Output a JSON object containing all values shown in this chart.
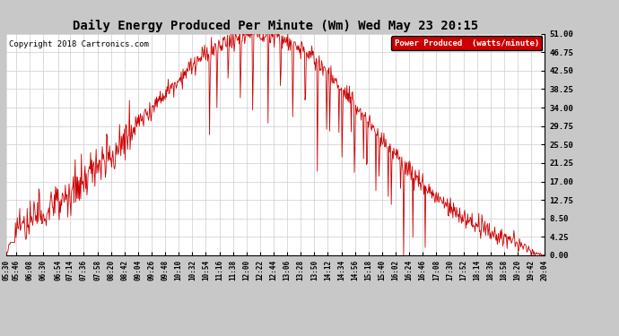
{
  "title": "Daily Energy Produced Per Minute (Wm) Wed May 23 20:15",
  "copyright": "Copyright 2018 Cartronics.com",
  "legend_label": "Power Produced  (watts/minute)",
  "legend_bg": "#CC0000",
  "legend_text_color": "#FFFFFF",
  "line_color": "#CC0000",
  "bg_color": "#FFFFFF",
  "grid_color": "#CCCCCC",
  "outer_bg": "#C8C8C8",
  "ymin": 0.0,
  "ymax": 51.0,
  "yticks": [
    0.0,
    4.25,
    8.5,
    12.75,
    17.0,
    21.25,
    25.5,
    29.75,
    34.0,
    38.25,
    42.5,
    46.75,
    51.0
  ],
  "ytick_labels": [
    "0.00",
    "4.25",
    "8.50",
    "12.75",
    "17.00",
    "21.25",
    "25.50",
    "29.75",
    "34.00",
    "38.25",
    "42.50",
    "46.75",
    "51.00"
  ],
  "xtick_times_str": [
    "05:30",
    "05:46",
    "06:08",
    "06:30",
    "06:54",
    "07:14",
    "07:36",
    "07:58",
    "08:20",
    "08:42",
    "09:04",
    "09:26",
    "09:48",
    "10:10",
    "10:32",
    "10:54",
    "11:16",
    "11:38",
    "12:00",
    "12:22",
    "12:44",
    "13:06",
    "13:28",
    "13:50",
    "14:12",
    "14:34",
    "14:56",
    "15:18",
    "15:40",
    "16:02",
    "16:24",
    "16:46",
    "17:08",
    "17:30",
    "17:52",
    "18:14",
    "18:36",
    "18:58",
    "19:20",
    "19:42",
    "20:04"
  ],
  "start_time_str": "05:30",
  "end_time_str": "20:04"
}
